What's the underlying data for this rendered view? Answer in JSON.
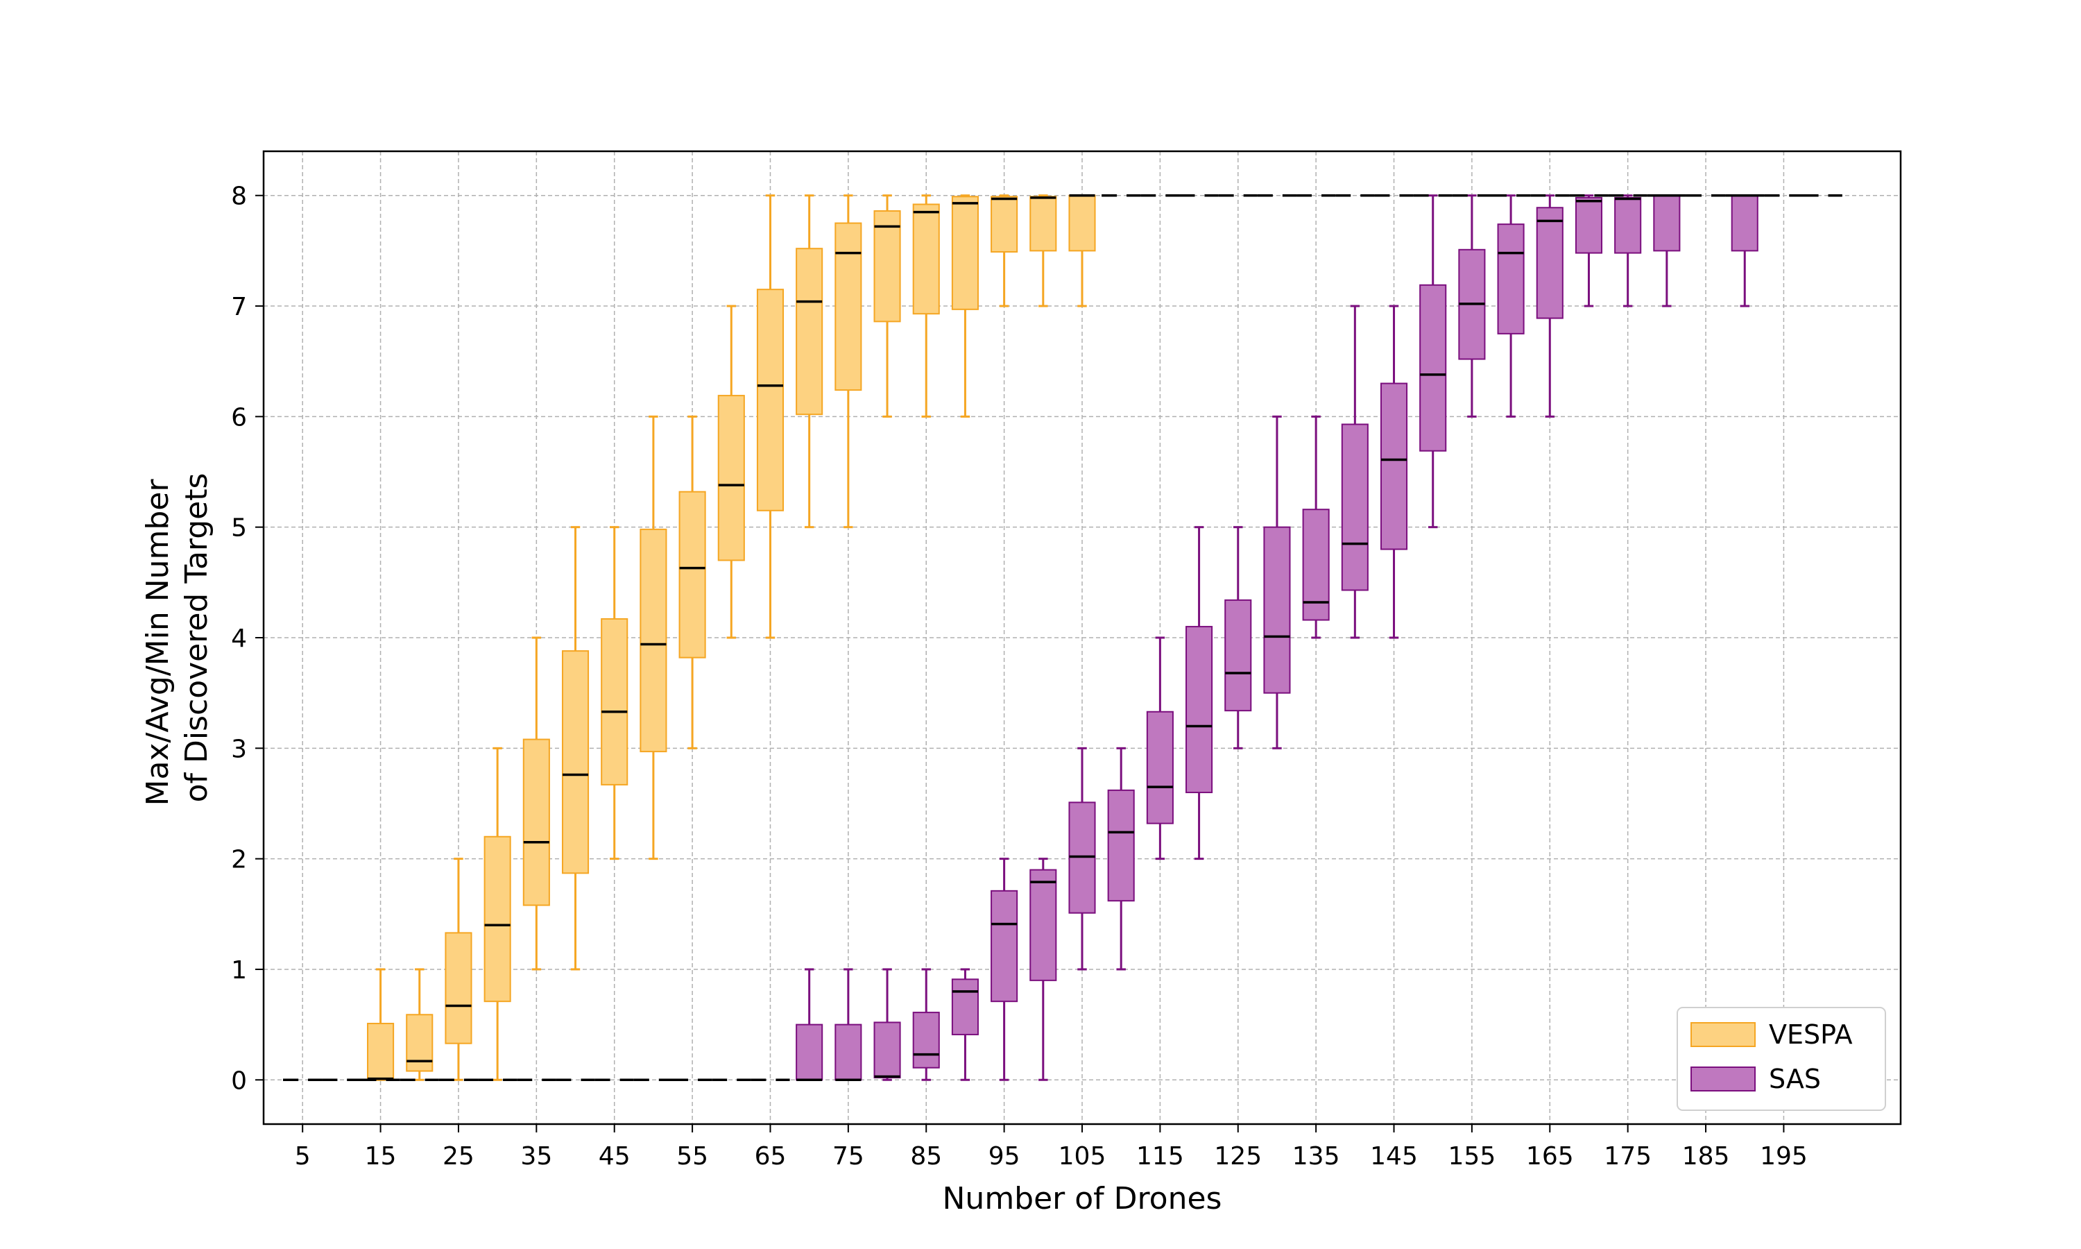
{
  "chart_data": {
    "type": "box",
    "xlabel": "Number of Drones",
    "ylabel_lines": [
      "Max/Avg/Min Number",
      "of Discovered Targets"
    ],
    "x_ticks": [
      5,
      15,
      25,
      35,
      45,
      55,
      65,
      75,
      85,
      95,
      105,
      115,
      125,
      135,
      145,
      155,
      165,
      175,
      185,
      195
    ],
    "y_ticks": [
      0,
      1,
      2,
      3,
      4,
      5,
      6,
      7,
      8
    ],
    "xlim": [
      0,
      210
    ],
    "ylim": [
      -0.4,
      8.4
    ],
    "grid": true,
    "legend_position": "bottom-right",
    "series": [
      {
        "name": "VESPA",
        "color": "#f5a623",
        "fill": "#fdd281",
        "points": [
          {
            "x": 5,
            "min": 0,
            "q1": 0,
            "avg": 0,
            "q3": 0,
            "max": 0
          },
          {
            "x": 10,
            "min": 0,
            "q1": 0,
            "avg": 0,
            "q3": 0,
            "max": 0
          },
          {
            "x": 15,
            "min": 0,
            "q1": 0,
            "avg": 0.01,
            "q3": 0.51,
            "max": 1
          },
          {
            "x": 20,
            "min": 0,
            "q1": 0.08,
            "avg": 0.17,
            "q3": 0.59,
            "max": 1
          },
          {
            "x": 25,
            "min": 0,
            "q1": 0.33,
            "avg": 0.67,
            "q3": 1.33,
            "max": 2
          },
          {
            "x": 30,
            "min": 0,
            "q1": 0.71,
            "avg": 1.4,
            "q3": 2.2,
            "max": 3
          },
          {
            "x": 35,
            "min": 1,
            "q1": 1.58,
            "avg": 2.15,
            "q3": 3.08,
            "max": 4
          },
          {
            "x": 40,
            "min": 1,
            "q1": 1.87,
            "avg": 2.76,
            "q3": 3.88,
            "max": 5
          },
          {
            "x": 45,
            "min": 2,
            "q1": 2.67,
            "avg": 3.33,
            "q3": 4.17,
            "max": 5
          },
          {
            "x": 50,
            "min": 2,
            "q1": 2.97,
            "avg": 3.94,
            "q3": 4.98,
            "max": 6
          },
          {
            "x": 55,
            "min": 3,
            "q1": 3.82,
            "avg": 4.63,
            "q3": 5.32,
            "max": 6
          },
          {
            "x": 60,
            "min": 4,
            "q1": 4.7,
            "avg": 5.38,
            "q3": 6.19,
            "max": 7
          },
          {
            "x": 65,
            "min": 4,
            "q1": 5.15,
            "avg": 6.28,
            "q3": 7.15,
            "max": 8
          },
          {
            "x": 70,
            "min": 5,
            "q1": 6.02,
            "avg": 7.04,
            "q3": 7.52,
            "max": 8
          },
          {
            "x": 75,
            "min": 5,
            "q1": 6.24,
            "avg": 7.48,
            "q3": 7.75,
            "max": 8
          },
          {
            "x": 80,
            "min": 6,
            "q1": 6.86,
            "avg": 7.72,
            "q3": 7.86,
            "max": 8
          },
          {
            "x": 85,
            "min": 6,
            "q1": 6.93,
            "avg": 7.85,
            "q3": 7.92,
            "max": 8
          },
          {
            "x": 90,
            "min": 6,
            "q1": 6.97,
            "avg": 7.93,
            "q3": 7.99,
            "max": 8
          },
          {
            "x": 95,
            "min": 7,
            "q1": 7.49,
            "avg": 7.97,
            "q3": 7.99,
            "max": 8
          },
          {
            "x": 100,
            "min": 7,
            "q1": 7.5,
            "avg": 7.98,
            "q3": 7.99,
            "max": 8
          },
          {
            "x": 105,
            "min": 7,
            "q1": 7.5,
            "avg": 8,
            "q3": 8,
            "max": 8
          },
          {
            "x": 110,
            "min": 8,
            "q1": 8,
            "avg": 8,
            "q3": 8,
            "max": 8
          },
          {
            "x": 115,
            "min": 8,
            "q1": 8,
            "avg": 8,
            "q3": 8,
            "max": 8
          },
          {
            "x": 120,
            "min": 8,
            "q1": 8,
            "avg": 8,
            "q3": 8,
            "max": 8
          },
          {
            "x": 125,
            "min": 8,
            "q1": 8,
            "avg": 8,
            "q3": 8,
            "max": 8
          },
          {
            "x": 130,
            "min": 8,
            "q1": 8,
            "avg": 8,
            "q3": 8,
            "max": 8
          },
          {
            "x": 135,
            "min": 8,
            "q1": 8,
            "avg": 8,
            "q3": 8,
            "max": 8
          },
          {
            "x": 140,
            "min": 8,
            "q1": 8,
            "avg": 8,
            "q3": 8,
            "max": 8
          },
          {
            "x": 145,
            "min": 8,
            "q1": 8,
            "avg": 8,
            "q3": 8,
            "max": 8
          },
          {
            "x": 150,
            "min": 8,
            "q1": 8,
            "avg": 8,
            "q3": 8,
            "max": 8
          },
          {
            "x": 155,
            "min": 8,
            "q1": 8,
            "avg": 8,
            "q3": 8,
            "max": 8
          },
          {
            "x": 160,
            "min": 8,
            "q1": 8,
            "avg": 8,
            "q3": 8,
            "max": 8
          },
          {
            "x": 165,
            "min": 8,
            "q1": 8,
            "avg": 8,
            "q3": 8,
            "max": 8
          },
          {
            "x": 170,
            "min": 8,
            "q1": 8,
            "avg": 8,
            "q3": 8,
            "max": 8
          },
          {
            "x": 175,
            "min": 8,
            "q1": 8,
            "avg": 8,
            "q3": 8,
            "max": 8
          },
          {
            "x": 180,
            "min": 8,
            "q1": 8,
            "avg": 8,
            "q3": 8,
            "max": 8
          },
          {
            "x": 185,
            "min": 8,
            "q1": 8,
            "avg": 8,
            "q3": 8,
            "max": 8
          },
          {
            "x": 190,
            "min": 8,
            "q1": 8,
            "avg": 8,
            "q3": 8,
            "max": 8
          },
          {
            "x": 195,
            "min": 8,
            "q1": 8,
            "avg": 8,
            "q3": 8,
            "max": 8
          },
          {
            "x": 200,
            "min": 8,
            "q1": 8,
            "avg": 8,
            "q3": 8,
            "max": 8
          }
        ]
      },
      {
        "name": "SAS",
        "color": "#7b0f7e",
        "fill": "#bf78bf",
        "points": [
          {
            "x": 5,
            "min": 0,
            "q1": 0,
            "avg": 0,
            "q3": 0,
            "max": 0
          },
          {
            "x": 10,
            "min": 0,
            "q1": 0,
            "avg": 0,
            "q3": 0,
            "max": 0
          },
          {
            "x": 15,
            "min": 0,
            "q1": 0,
            "avg": 0,
            "q3": 0,
            "max": 0
          },
          {
            "x": 20,
            "min": 0,
            "q1": 0,
            "avg": 0,
            "q3": 0,
            "max": 0
          },
          {
            "x": 25,
            "min": 0,
            "q1": 0,
            "avg": 0,
            "q3": 0,
            "max": 0
          },
          {
            "x": 30,
            "min": 0,
            "q1": 0,
            "avg": 0,
            "q3": 0,
            "max": 0
          },
          {
            "x": 35,
            "min": 0,
            "q1": 0,
            "avg": 0,
            "q3": 0,
            "max": 0
          },
          {
            "x": 40,
            "min": 0,
            "q1": 0,
            "avg": 0,
            "q3": 0,
            "max": 0
          },
          {
            "x": 45,
            "min": 0,
            "q1": 0,
            "avg": 0,
            "q3": 0,
            "max": 0
          },
          {
            "x": 50,
            "min": 0,
            "q1": 0,
            "avg": 0,
            "q3": 0,
            "max": 0
          },
          {
            "x": 55,
            "min": 0,
            "q1": 0,
            "avg": 0,
            "q3": 0,
            "max": 0
          },
          {
            "x": 60,
            "min": 0,
            "q1": 0,
            "avg": 0,
            "q3": 0,
            "max": 0
          },
          {
            "x": 65,
            "min": 0,
            "q1": 0,
            "avg": 0,
            "q3": 0,
            "max": 0
          },
          {
            "x": 70,
            "min": 0,
            "q1": 0,
            "avg": 0,
            "q3": 0.5,
            "max": 1
          },
          {
            "x": 75,
            "min": 0,
            "q1": 0,
            "avg": 0,
            "q3": 0.5,
            "max": 1
          },
          {
            "x": 80,
            "min": 0,
            "q1": 0.02,
            "avg": 0.03,
            "q3": 0.52,
            "max": 1
          },
          {
            "x": 85,
            "min": 0,
            "q1": 0.11,
            "avg": 0.23,
            "q3": 0.61,
            "max": 1
          },
          {
            "x": 90,
            "min": 0,
            "q1": 0.41,
            "avg": 0.8,
            "q3": 0.91,
            "max": 1
          },
          {
            "x": 95,
            "min": 0,
            "q1": 0.71,
            "avg": 1.41,
            "q3": 1.71,
            "max": 2
          },
          {
            "x": 100,
            "min": 0,
            "q1": 0.9,
            "avg": 1.79,
            "q3": 1.9,
            "max": 2
          },
          {
            "x": 105,
            "min": 1,
            "q1": 1.51,
            "avg": 2.02,
            "q3": 2.51,
            "max": 3
          },
          {
            "x": 110,
            "min": 1,
            "q1": 1.62,
            "avg": 2.24,
            "q3": 2.62,
            "max": 3
          },
          {
            "x": 115,
            "min": 2,
            "q1": 2.32,
            "avg": 2.65,
            "q3": 3.33,
            "max": 4
          },
          {
            "x": 120,
            "min": 2,
            "q1": 2.6,
            "avg": 3.2,
            "q3": 4.1,
            "max": 5
          },
          {
            "x": 125,
            "min": 3,
            "q1": 3.34,
            "avg": 3.68,
            "q3": 4.34,
            "max": 5
          },
          {
            "x": 130,
            "min": 3,
            "q1": 3.5,
            "avg": 4.01,
            "q3": 5,
            "max": 6
          },
          {
            "x": 135,
            "min": 4,
            "q1": 4.16,
            "avg": 4.32,
            "q3": 5.16,
            "max": 6
          },
          {
            "x": 140,
            "min": 4,
            "q1": 4.43,
            "avg": 4.85,
            "q3": 5.93,
            "max": 7
          },
          {
            "x": 145,
            "min": 4,
            "q1": 4.8,
            "avg": 5.61,
            "q3": 6.3,
            "max": 7
          },
          {
            "x": 150,
            "min": 5,
            "q1": 5.69,
            "avg": 6.38,
            "q3": 7.19,
            "max": 8
          },
          {
            "x": 155,
            "min": 6,
            "q1": 6.52,
            "avg": 7.02,
            "q3": 7.51,
            "max": 8
          },
          {
            "x": 160,
            "min": 6,
            "q1": 6.75,
            "avg": 7.48,
            "q3": 7.74,
            "max": 8
          },
          {
            "x": 165,
            "min": 6,
            "q1": 6.89,
            "avg": 7.77,
            "q3": 7.89,
            "max": 8
          },
          {
            "x": 170,
            "min": 7,
            "q1": 7.48,
            "avg": 7.95,
            "q3": 7.98,
            "max": 8
          },
          {
            "x": 175,
            "min": 7,
            "q1": 7.48,
            "avg": 7.97,
            "q3": 7.98,
            "max": 8
          },
          {
            "x": 180,
            "min": 7,
            "q1": 7.5,
            "avg": 8,
            "q3": 8,
            "max": 8
          },
          {
            "x": 185,
            "min": 8,
            "q1": 8,
            "avg": 8,
            "q3": 8,
            "max": 8
          },
          {
            "x": 190,
            "min": 7,
            "q1": 7.5,
            "avg": 8,
            "q3": 8,
            "max": 8
          },
          {
            "x": 195,
            "min": 8,
            "q1": 8,
            "avg": 8,
            "q3": 8,
            "max": 8
          },
          {
            "x": 200,
            "min": 8,
            "q1": 8,
            "avg": 8,
            "q3": 8,
            "max": 8
          }
        ]
      }
    ]
  }
}
